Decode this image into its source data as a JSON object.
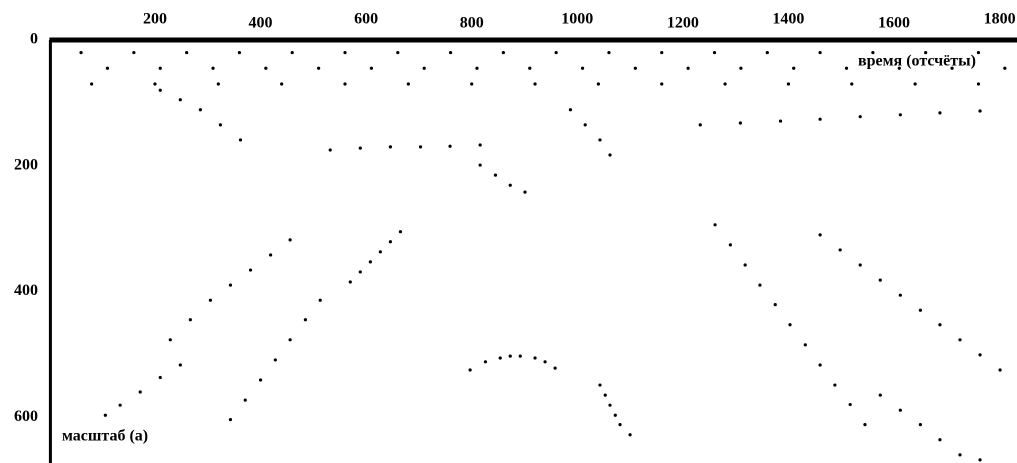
{
  "chart_data": {
    "type": "scatter",
    "x_label": "время (отсчёты)",
    "y_label": "масштаб (а)",
    "xlim": [
      0,
      1833
    ],
    "ylim": [
      0,
      673
    ],
    "xticks": [
      200,
      400,
      600,
      800,
      1000,
      1200,
      1400,
      1600,
      1800
    ],
    "yticks": [
      0,
      200,
      400,
      600
    ],
    "x_axis_position": "top",
    "y_axis_inverted": true,
    "grid": false,
    "color": "#000000",
    "series": [
      {
        "x": [
          60,
          160,
          260,
          360,
          460,
          560,
          660,
          760,
          860,
          960,
          1060,
          1160,
          1260,
          1360,
          1460,
          1560,
          1660,
          1760
        ],
        "y": [
          20,
          20,
          20,
          20,
          20,
          20,
          20,
          20,
          20,
          20,
          20,
          20,
          20,
          20,
          20,
          20,
          20,
          20
        ]
      },
      {
        "x": [
          110,
          210,
          310,
          410,
          510,
          610,
          710,
          810,
          910,
          1010,
          1110,
          1210,
          1310,
          1410,
          1510,
          1610,
          1710,
          1810
        ],
        "y": [
          45,
          45,
          45,
          45,
          45,
          45,
          45,
          45,
          45,
          45,
          45,
          45,
          45,
          45,
          45,
          45,
          45,
          45
        ]
      },
      {
        "x": [
          80,
          200,
          320,
          440,
          560,
          680,
          800,
          920,
          1040,
          1160,
          1280,
          1400,
          1520,
          1640,
          1760
        ],
        "y": [
          70,
          70,
          70,
          70,
          70,
          70,
          70,
          70,
          70,
          70,
          70,
          70,
          70,
          70,
          70
        ]
      },
      {
        "x": [
          665,
          646,
          627,
          608,
          589,
          570
        ],
        "y": [
          305,
          321,
          337,
          353,
          369,
          385
        ]
      },
      {
        "x": [
          513,
          485,
          456,
          428,
          400,
          371,
          343
        ],
        "y": [
          414,
          445,
          477,
          509,
          541,
          573,
          604
        ]
      },
      {
        "x": [
          456,
          419,
          381,
          343,
          305,
          267,
          229
        ],
        "y": [
          318,
          342,
          366,
          390,
          414,
          445,
          477
        ]
      },
      {
        "x": [
          248,
          210,
          172,
          134,
          106
        ],
        "y": [
          517,
          537,
          560,
          581,
          597
        ]
      },
      {
        "x": [
          797,
          826,
          854,
          873,
          892,
          920,
          939,
          958
        ],
        "y": [
          525,
          512,
          506,
          503,
          503,
          506,
          512,
          522
        ]
      },
      {
        "x": [
          1261,
          1290,
          1318,
          1346,
          1375,
          1403,
          1432,
          1460,
          1488,
          1517,
          1545
        ],
        "y": [
          294,
          326,
          358,
          390,
          421,
          453,
          485,
          517,
          549,
          580,
          612
        ]
      },
      {
        "x": [
          1460,
          1498,
          1536,
          1574,
          1612,
          1650,
          1687,
          1725,
          1763,
          1801
        ],
        "y": [
          310,
          334,
          358,
          382,
          406,
          430,
          453,
          477,
          501,
          525
        ]
      },
      {
        "x": [
          1574,
          1612,
          1650,
          1687,
          1725,
          1763
        ],
        "y": [
          565,
          589,
          612,
          636,
          660,
          668
        ]
      },
      {
        "x": [
          1043,
          1053,
          1062,
          1072,
          1081,
          1100
        ],
        "y": [
          549,
          565,
          581,
          597,
          612,
          628
        ]
      },
      {
        "x": [
          532,
          589,
          646,
          703,
          759,
          816
        ],
        "y": [
          175,
          172,
          170,
          170,
          169,
          167
        ]
      },
      {
        "x": [
          210,
          248,
          286,
          324,
          362
        ],
        "y": [
          80,
          95,
          111,
          135,
          159
        ]
      },
      {
        "x": [
          1233,
          1309,
          1385,
          1460,
          1536,
          1612,
          1687,
          1763
        ],
        "y": [
          135,
          132,
          129,
          126,
          122,
          119,
          116,
          113
        ]
      },
      {
        "x": [
          816,
          845,
          873,
          901
        ],
        "y": [
          199,
          215,
          231,
          242
        ]
      },
      {
        "x": [
          987,
          1015,
          1043,
          1062
        ],
        "y": [
          111,
          135,
          159,
          183
        ]
      }
    ]
  }
}
